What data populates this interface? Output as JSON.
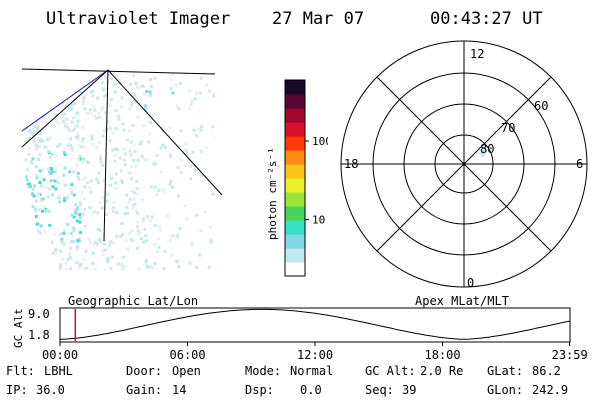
{
  "header": {
    "instrument": "Ultraviolet Imager",
    "date": "27 Mar 07",
    "time": "00:43:27 UT"
  },
  "colorbar": {
    "label": "photon cm⁻²s⁻¹",
    "ticks": [
      {
        "value": 100,
        "label": "100"
      },
      {
        "value": 10,
        "label": "10"
      }
    ],
    "colors": [
      "#ffffff",
      "#bfe8ef",
      "#7fd8e4",
      "#35e0c4",
      "#4ad25a",
      "#9be43a",
      "#e9f02a",
      "#ffc21a",
      "#ff8a12",
      "#ff3a0a",
      "#d8102a",
      "#a0082e",
      "#5a0637",
      "#1a0a2a"
    ]
  },
  "polar_plot": {
    "mlt_labels": {
      "top": "12",
      "bottom": "0",
      "left": "18",
      "right": "6"
    },
    "latitude_labels": [
      "80",
      "70",
      "60"
    ]
  },
  "timeline": {
    "left_title": "Geographic Lat/Lon",
    "right_title": "Apex MLat/MLT",
    "ylabel": "GC Alt",
    "ytick_top": "9.0",
    "ytick_bottom": "1.8",
    "xticks": [
      "00:00",
      "06:00",
      "12:00",
      "18:00",
      "23:59"
    ],
    "current_time_marker_hours": 0.72
  },
  "params": {
    "flt_label": "Flt:",
    "flt_value": "LBHL",
    "ip_label": "IP:",
    "ip_value": "36.0",
    "door_label": "Door:",
    "door_value": "Open",
    "gain_label": "Gain:",
    "gain_value": "14",
    "mode_label": "Mode:",
    "mode_value": "Normal",
    "dsp_label": "Dsp:",
    "dsp_value": "0.0",
    "gcalt_label": "GC Alt:",
    "gcalt_value": "2.0 Re",
    "seq_label": "Seq:",
    "seq_value": "39",
    "glat_label": "GLat:",
    "glat_value": "86.2",
    "glon_label": "GLon:",
    "glon_value": "242.9"
  }
}
